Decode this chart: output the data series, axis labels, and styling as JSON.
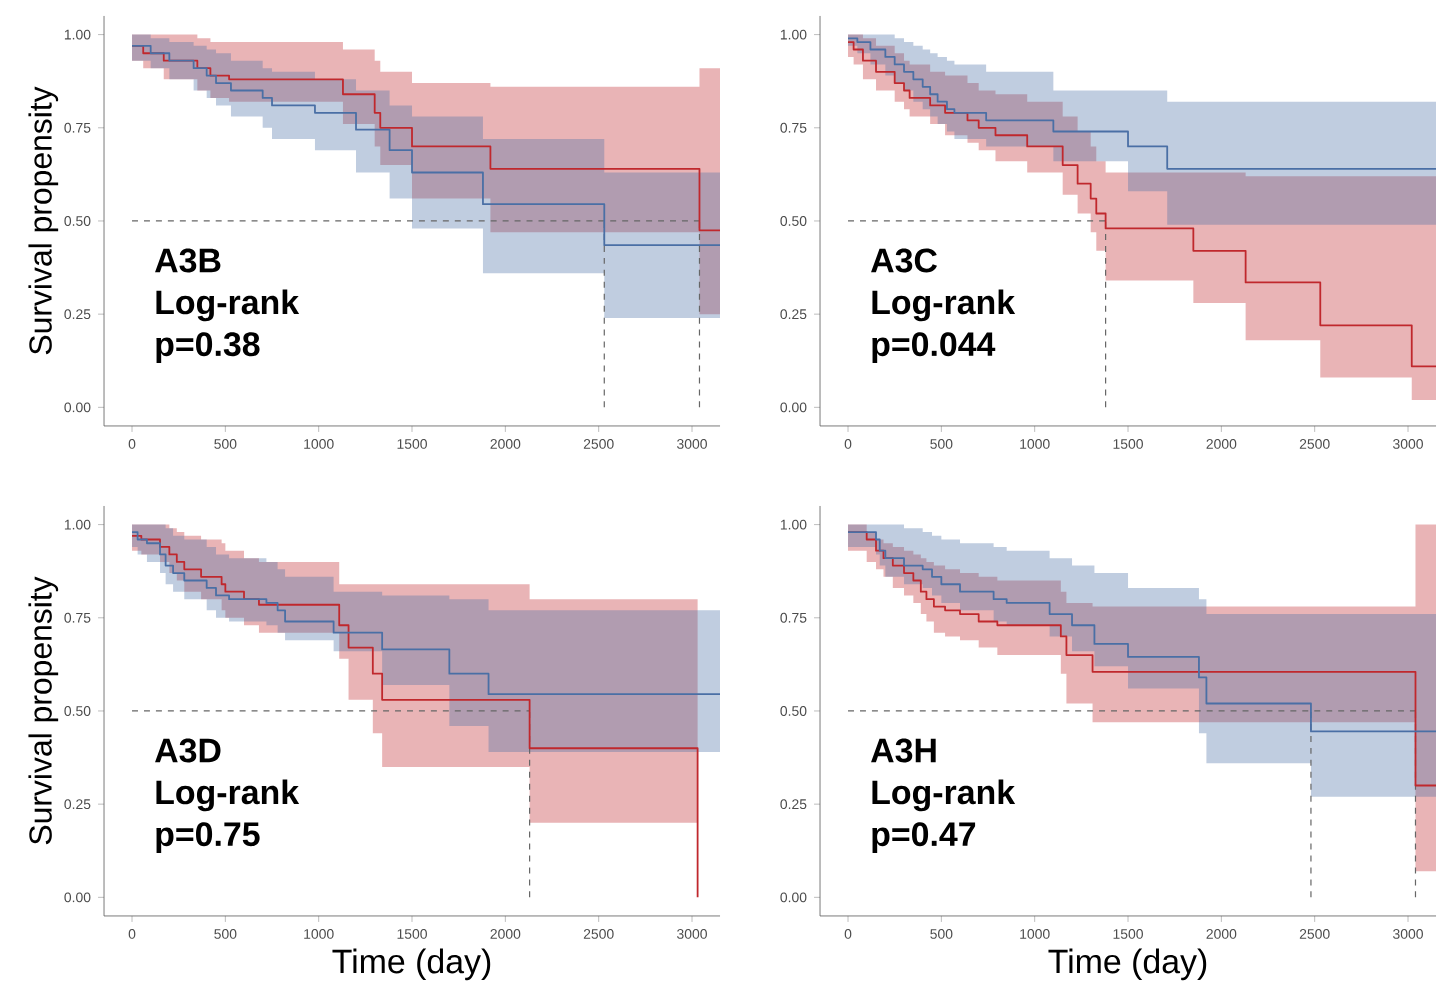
{
  "chart_data": [
    {
      "type": "step",
      "ylabel": "Survival propensity",
      "annotations": [
        "A3B",
        "Log-rank",
        "p=0.38"
      ],
      "xlim": [
        -150,
        3150
      ],
      "ylim": [
        -0.05,
        1.05
      ],
      "xticks": [
        0,
        500,
        1000,
        1500,
        2000,
        2500,
        3000
      ],
      "yticks": [
        {
          "value": 0,
          "label": "0.00"
        },
        {
          "value": 0.25,
          "label": "0.25"
        },
        {
          "value": 0.5,
          "label": "0.50"
        },
        {
          "value": 0.75,
          "label": "0.75"
        },
        {
          "value": 1,
          "label": "1.00"
        }
      ],
      "ref_lines": [
        {
          "axis": "y",
          "value": 0.5,
          "line_style": "dashed"
        },
        {
          "axis": "x",
          "value": 2530,
          "line_style": "dashed"
        },
        {
          "axis": "x",
          "value": 3040,
          "line_style": "dashed"
        }
      ],
      "series": [
        {
          "color": "#c0282d",
          "x": [
            0,
            60,
            170,
            350,
            420,
            520,
            1130,
            1300,
            1330,
            1500,
            1920,
            3040,
            3150
          ],
          "values": [
            0.97,
            0.95,
            0.93,
            0.91,
            0.89,
            0.88,
            0.84,
            0.79,
            0.75,
            0.7,
            0.64,
            0.475,
            0.475
          ],
          "lower": [
            0.93,
            0.91,
            0.88,
            0.85,
            0.83,
            0.82,
            0.76,
            0.7,
            0.65,
            0.56,
            0.47,
            0.25,
            0.25
          ],
          "upper": [
            1,
            1,
            1,
            0.99,
            0.98,
            0.98,
            0.96,
            0.93,
            0.9,
            0.87,
            0.86,
            0.91,
            0.91
          ]
        },
        {
          "color": "#4a6fa5",
          "x": [
            0,
            100,
            200,
            330,
            400,
            450,
            530,
            700,
            750,
            980,
            1200,
            1380,
            1500,
            1880,
            2530,
            3150
          ],
          "values": [
            0.97,
            0.95,
            0.93,
            0.91,
            0.89,
            0.87,
            0.85,
            0.83,
            0.81,
            0.79,
            0.745,
            0.69,
            0.63,
            0.545,
            0.435,
            0.435
          ],
          "lower": [
            0.93,
            0.91,
            0.88,
            0.85,
            0.83,
            0.81,
            0.78,
            0.75,
            0.72,
            0.69,
            0.63,
            0.56,
            0.48,
            0.36,
            0.24,
            0.24
          ],
          "upper": [
            1,
            0.99,
            0.98,
            0.97,
            0.96,
            0.95,
            0.93,
            0.91,
            0.9,
            0.88,
            0.85,
            0.81,
            0.78,
            0.72,
            0.63,
            0.63
          ]
        }
      ]
    },
    {
      "type": "step",
      "annotations": [
        "A3C",
        "Log-rank",
        "p=0.044"
      ],
      "xlim": [
        -150,
        3150
      ],
      "ylim": [
        -0.05,
        1.05
      ],
      "xticks": [
        0,
        500,
        1000,
        1500,
        2000,
        2500,
        3000
      ],
      "yticks": [
        {
          "value": 0,
          "label": "0.00"
        },
        {
          "value": 0.25,
          "label": "0.25"
        },
        {
          "value": 0.5,
          "label": "0.50"
        },
        {
          "value": 0.75,
          "label": "0.75"
        },
        {
          "value": 1,
          "label": "1.00"
        }
      ],
      "ref_lines": [
        {
          "axis": "y",
          "value": 0.5,
          "line_style": "dashed"
        },
        {
          "axis": "x",
          "value": 1380,
          "line_style": "dashed"
        }
      ],
      "series": [
        {
          "color": "#c0282d",
          "x": [
            0,
            30,
            80,
            150,
            250,
            300,
            330,
            440,
            520,
            640,
            700,
            790,
            960,
            1150,
            1230,
            1300,
            1330,
            1380,
            1850,
            2130,
            2530,
            3020,
            3150
          ],
          "values": [
            0.98,
            0.96,
            0.93,
            0.9,
            0.87,
            0.85,
            0.83,
            0.81,
            0.79,
            0.77,
            0.75,
            0.73,
            0.7,
            0.65,
            0.6,
            0.56,
            0.52,
            0.48,
            0.42,
            0.335,
            0.22,
            0.11,
            0.11
          ],
          "lower": [
            0.94,
            0.92,
            0.88,
            0.85,
            0.82,
            0.8,
            0.78,
            0.76,
            0.73,
            0.71,
            0.69,
            0.66,
            0.63,
            0.57,
            0.52,
            0.47,
            0.42,
            0.34,
            0.28,
            0.18,
            0.08,
            0.02,
            0.02
          ],
          "upper": [
            1,
            1,
            0.99,
            0.97,
            0.95,
            0.93,
            0.92,
            0.9,
            0.89,
            0.87,
            0.85,
            0.84,
            0.82,
            0.78,
            0.74,
            0.7,
            0.66,
            0.63,
            0.63,
            0.62,
            0.62,
            0.62,
            0.62
          ]
        },
        {
          "color": "#4a6fa5",
          "x": [
            0,
            50,
            120,
            200,
            250,
            300,
            350,
            400,
            440,
            480,
            530,
            570,
            740,
            1100,
            1500,
            1710,
            3150
          ],
          "values": [
            0.99,
            0.98,
            0.96,
            0.94,
            0.92,
            0.9,
            0.88,
            0.86,
            0.84,
            0.82,
            0.8,
            0.79,
            0.77,
            0.74,
            0.7,
            0.64,
            0.64
          ],
          "lower": [
            0.97,
            0.95,
            0.92,
            0.89,
            0.87,
            0.85,
            0.82,
            0.8,
            0.78,
            0.76,
            0.74,
            0.72,
            0.7,
            0.66,
            0.58,
            0.49,
            0.49
          ],
          "upper": [
            1,
            1,
            1,
            1,
            0.99,
            0.98,
            0.97,
            0.96,
            0.95,
            0.94,
            0.93,
            0.92,
            0.9,
            0.85,
            0.85,
            0.82,
            0.82
          ]
        }
      ]
    },
    {
      "type": "step",
      "xlabel": "Time (day)",
      "ylabel": "Survival propensity",
      "annotations": [
        "A3D",
        "Log-rank",
        "p=0.75"
      ],
      "xlim": [
        -150,
        3150
      ],
      "ylim": [
        -0.05,
        1.05
      ],
      "xticks": [
        0,
        500,
        1000,
        1500,
        2000,
        2500,
        3000
      ],
      "yticks": [
        {
          "value": 0,
          "label": "0.00"
        },
        {
          "value": 0.25,
          "label": "0.25"
        },
        {
          "value": 0.5,
          "label": "0.50"
        },
        {
          "value": 0.75,
          "label": "0.75"
        },
        {
          "value": 1,
          "label": "1.00"
        }
      ],
      "ref_lines": [
        {
          "axis": "y",
          "value": 0.5,
          "line_style": "dashed"
        },
        {
          "axis": "x",
          "value": 2130,
          "line_style": "dashed"
        }
      ],
      "series": [
        {
          "color": "#c0282d",
          "x": [
            0,
            50,
            150,
            200,
            240,
            280,
            370,
            480,
            500,
            600,
            680,
            1110,
            1160,
            1290,
            1340,
            2130,
            3030
          ],
          "values": [
            0.97,
            0.96,
            0.94,
            0.92,
            0.9,
            0.88,
            0.86,
            0.84,
            0.82,
            0.8,
            0.785,
            0.73,
            0.67,
            0.6,
            0.53,
            0.4,
            0
          ],
          "lower": [
            0.93,
            0.92,
            0.9,
            0.87,
            0.85,
            0.82,
            0.8,
            0.77,
            0.75,
            0.73,
            0.71,
            0.64,
            0.53,
            0.44,
            0.35,
            0.2,
            0.2
          ],
          "upper": [
            1,
            1,
            1,
            0.99,
            0.98,
            0.97,
            0.96,
            0.95,
            0.93,
            0.91,
            0.9,
            0.84,
            0.84,
            0.84,
            0.84,
            0.8,
            0.8
          ]
        },
        {
          "color": "#4a6fa5",
          "x": [
            0,
            30,
            80,
            150,
            180,
            220,
            280,
            400,
            450,
            520,
            720,
            780,
            820,
            1080,
            1340,
            1700,
            1910,
            3150
          ],
          "values": [
            0.98,
            0.96,
            0.95,
            0.92,
            0.89,
            0.87,
            0.85,
            0.83,
            0.81,
            0.8,
            0.79,
            0.77,
            0.74,
            0.71,
            0.665,
            0.6,
            0.545,
            0.545
          ],
          "lower": [
            0.94,
            0.92,
            0.9,
            0.87,
            0.84,
            0.82,
            0.8,
            0.77,
            0.75,
            0.74,
            0.73,
            0.71,
            0.69,
            0.66,
            0.57,
            0.46,
            0.39,
            0.39
          ],
          "upper": [
            1,
            1,
            1,
            1,
            0.99,
            0.97,
            0.96,
            0.94,
            0.92,
            0.91,
            0.9,
            0.88,
            0.86,
            0.82,
            0.81,
            0.8,
            0.77,
            0.77
          ]
        }
      ]
    },
    {
      "type": "step",
      "xlabel": "Time (day)",
      "annotations": [
        "A3H",
        "Log-rank",
        "p=0.47"
      ],
      "xlim": [
        -150,
        3150
      ],
      "ylim": [
        -0.05,
        1.05
      ],
      "xticks": [
        0,
        500,
        1000,
        1500,
        2000,
        2500,
        3000
      ],
      "yticks": [
        {
          "value": 0,
          "label": "0.00"
        },
        {
          "value": 0.25,
          "label": "0.25"
        },
        {
          "value": 0.5,
          "label": "0.50"
        },
        {
          "value": 0.75,
          "label": "0.75"
        },
        {
          "value": 1,
          "label": "1.00"
        }
      ],
      "ref_lines": [
        {
          "axis": "y",
          "value": 0.5,
          "line_style": "dashed"
        },
        {
          "axis": "x",
          "value": 2480,
          "line_style": "dashed"
        },
        {
          "axis": "x",
          "value": 3040,
          "line_style": "dashed"
        }
      ],
      "series": [
        {
          "color": "#c0282d",
          "x": [
            0,
            100,
            150,
            190,
            240,
            300,
            350,
            390,
            420,
            460,
            520,
            600,
            700,
            800,
            1140,
            1170,
            1310,
            3040,
            3150
          ],
          "values": [
            0.98,
            0.96,
            0.93,
            0.91,
            0.89,
            0.87,
            0.85,
            0.82,
            0.8,
            0.78,
            0.77,
            0.76,
            0.74,
            0.73,
            0.7,
            0.65,
            0.605,
            0.3,
            0.3
          ],
          "lower": [
            0.93,
            0.9,
            0.88,
            0.86,
            0.83,
            0.81,
            0.79,
            0.76,
            0.74,
            0.71,
            0.7,
            0.69,
            0.67,
            0.65,
            0.6,
            0.52,
            0.47,
            0.07,
            0.07
          ],
          "upper": [
            1,
            0.98,
            0.96,
            0.95,
            0.94,
            0.93,
            0.92,
            0.91,
            0.9,
            0.89,
            0.88,
            0.87,
            0.86,
            0.85,
            0.82,
            0.79,
            0.78,
            1,
            1
          ]
        },
        {
          "color": "#4a6fa5",
          "x": [
            0,
            150,
            170,
            200,
            300,
            400,
            450,
            500,
            600,
            780,
            850,
            1080,
            1200,
            1320,
            1500,
            1880,
            1920,
            2480,
            3150
          ],
          "values": [
            0.98,
            0.96,
            0.93,
            0.91,
            0.89,
            0.88,
            0.86,
            0.84,
            0.82,
            0.8,
            0.79,
            0.76,
            0.73,
            0.68,
            0.645,
            0.59,
            0.52,
            0.445,
            0.445
          ],
          "lower": [
            0.94,
            0.92,
            0.89,
            0.86,
            0.84,
            0.83,
            0.81,
            0.79,
            0.77,
            0.74,
            0.73,
            0.7,
            0.66,
            0.62,
            0.56,
            0.44,
            0.36,
            0.27,
            0.27
          ],
          "upper": [
            1,
            1,
            1,
            1,
            0.99,
            0.98,
            0.97,
            0.96,
            0.95,
            0.94,
            0.93,
            0.91,
            0.89,
            0.87,
            0.83,
            0.8,
            0.76,
            0.76,
            0.76
          ]
        }
      ]
    }
  ]
}
